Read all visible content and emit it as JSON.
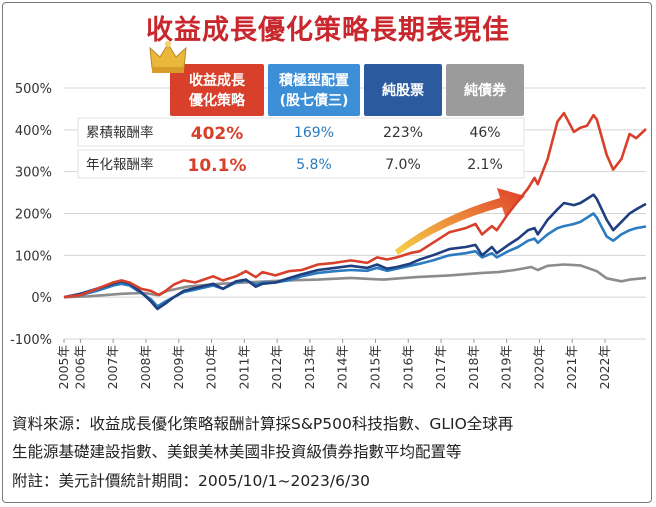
{
  "title": "收益成長優化策略長期表現佳",
  "chart_data": {
    "type": "line",
    "ylim": [
      -100,
      500
    ],
    "y_ticks": [
      -100,
      0,
      100,
      200,
      300,
      400,
      500
    ],
    "y_tick_labels": [
      "-100%",
      "0%",
      "100%",
      "200%",
      "300%",
      "400%",
      "500%"
    ],
    "x_ticks": [
      "2005年",
      "2006年",
      "2007年",
      "2008年",
      "2009年",
      "2010年",
      "2011年",
      "2012年",
      "2013年",
      "2014年",
      "2015年",
      "2016年",
      "2017年",
      "2018年",
      "2019年",
      "2020年",
      "2021年",
      "2022年"
    ],
    "xlim": [
      2005.75,
      2023.5
    ],
    "grid": true,
    "series": [
      {
        "name": "收益成長優化策略",
        "color": "#d8402b",
        "x": [
          2005.75,
          2006.25,
          2006.75,
          2007.25,
          2007.5,
          2007.75,
          2008.1,
          2008.4,
          2008.65,
          2008.85,
          2009.1,
          2009.4,
          2009.75,
          2010.3,
          2010.6,
          2011.0,
          2011.3,
          2011.6,
          2011.8,
          2012.2,
          2012.6,
          2013.0,
          2013.5,
          2014.0,
          2014.5,
          2015.0,
          2015.3,
          2015.6,
          2015.9,
          2016.3,
          2016.6,
          2017.0,
          2017.5,
          2018.0,
          2018.3,
          2018.5,
          2018.8,
          2018.95,
          2019.3,
          2019.6,
          2019.9,
          2020.1,
          2020.2,
          2020.5,
          2020.8,
          2021.0,
          2021.3,
          2021.5,
          2021.7,
          2021.9,
          2022.0,
          2022.3,
          2022.5,
          2022.75,
          2023.0,
          2023.2,
          2023.5
        ],
        "y": [
          0,
          5,
          20,
          35,
          40,
          35,
          20,
          15,
          5,
          15,
          30,
          40,
          35,
          50,
          40,
          50,
          62,
          48,
          60,
          52,
          62,
          65,
          78,
          82,
          88,
          82,
          95,
          90,
          95,
          105,
          110,
          130,
          155,
          165,
          175,
          150,
          170,
          160,
          200,
          230,
          260,
          285,
          270,
          330,
          420,
          440,
          395,
          405,
          410,
          435,
          425,
          340,
          305,
          330,
          390,
          380,
          402
        ]
      },
      {
        "name": "積極型配置(股七債三)",
        "color": "#2a7bbf",
        "x": [
          2005.75,
          2006.25,
          2006.75,
          2007.25,
          2007.5,
          2007.75,
          2008.1,
          2008.4,
          2008.6,
          2008.85,
          2009.1,
          2009.4,
          2009.75,
          2010.3,
          2010.6,
          2011.0,
          2011.3,
          2011.6,
          2011.8,
          2012.2,
          2012.6,
          2013.0,
          2013.5,
          2014.0,
          2014.5,
          2015.0,
          2015.3,
          2015.6,
          2015.9,
          2016.3,
          2016.6,
          2017.0,
          2017.5,
          2018.0,
          2018.3,
          2018.5,
          2018.8,
          2018.95,
          2019.3,
          2019.6,
          2019.9,
          2020.1,
          2020.2,
          2020.5,
          2020.8,
          2021.0,
          2021.3,
          2021.5,
          2021.7,
          2021.9,
          2022.0,
          2022.3,
          2022.5,
          2022.75,
          2023.0,
          2023.2,
          2023.5
        ],
        "y": [
          0,
          5,
          15,
          28,
          32,
          28,
          10,
          -5,
          -22,
          -10,
          0,
          12,
          18,
          28,
          20,
          35,
          40,
          30,
          35,
          35,
          40,
          50,
          58,
          62,
          65,
          63,
          70,
          63,
          68,
          75,
          80,
          88,
          100,
          105,
          110,
          95,
          105,
          95,
          110,
          120,
          135,
          140,
          130,
          150,
          165,
          170,
          175,
          180,
          190,
          200,
          190,
          145,
          135,
          150,
          160,
          165,
          169
        ]
      },
      {
        "name": "純股票",
        "color": "#1f3f80",
        "x": [
          2005.75,
          2006.25,
          2006.75,
          2007.25,
          2007.5,
          2007.75,
          2008.1,
          2008.4,
          2008.6,
          2008.85,
          2009.1,
          2009.4,
          2009.75,
          2010.3,
          2010.6,
          2011.0,
          2011.3,
          2011.6,
          2011.8,
          2012.2,
          2012.6,
          2013.0,
          2013.5,
          2014.0,
          2014.5,
          2015.0,
          2015.3,
          2015.6,
          2015.9,
          2016.3,
          2016.6,
          2017.0,
          2017.5,
          2018.0,
          2018.3,
          2018.5,
          2018.8,
          2018.95,
          2019.3,
          2019.6,
          2019.9,
          2020.1,
          2020.2,
          2020.5,
          2020.8,
          2021.0,
          2021.3,
          2021.5,
          2021.7,
          2021.9,
          2022.0,
          2022.3,
          2022.5,
          2022.75,
          2023.0,
          2023.2,
          2023.5
        ],
        "y": [
          0,
          8,
          20,
          32,
          38,
          32,
          12,
          -10,
          -28,
          -15,
          0,
          15,
          22,
          32,
          20,
          38,
          42,
          25,
          32,
          35,
          45,
          55,
          65,
          70,
          75,
          70,
          78,
          68,
          72,
          80,
          90,
          100,
          115,
          120,
          125,
          100,
          120,
          105,
          125,
          140,
          160,
          165,
          150,
          185,
          210,
          225,
          220,
          225,
          235,
          245,
          235,
          185,
          160,
          180,
          200,
          210,
          223
        ]
      },
      {
        "name": "純債券",
        "color": "#8c8c8c",
        "x": [
          2005.75,
          2006.5,
          2007.5,
          2008.2,
          2008.6,
          2008.9,
          2009.5,
          2010.5,
          2011.5,
          2012.5,
          2013.5,
          2014.5,
          2015.0,
          2015.5,
          2016.0,
          2016.5,
          2017.5,
          2018.5,
          2019.0,
          2019.5,
          2020.0,
          2020.2,
          2020.5,
          2021.0,
          2021.5,
          2022.0,
          2022.3,
          2022.75,
          2023.0,
          2023.5
        ],
        "y": [
          0,
          2,
          8,
          10,
          5,
          15,
          25,
          32,
          36,
          40,
          42,
          46,
          44,
          42,
          45,
          48,
          52,
          58,
          60,
          65,
          72,
          65,
          75,
          78,
          76,
          62,
          45,
          38,
          42,
          46
        ]
      }
    ],
    "table": {
      "columns": [
        {
          "label": "收益成長\n優化策略",
          "bg": "#d8402b"
        },
        {
          "label": "積極型配置\n(股七債三)",
          "bg": "#3c8fd6"
        },
        {
          "label": "純股票",
          "bg": "#2b5a9f"
        },
        {
          "label": "純債券",
          "bg": "#9b9b9b"
        }
      ],
      "rows": [
        {
          "label": "累積報酬率",
          "values": [
            "402%",
            "169%",
            "223%",
            "46%"
          ]
        },
        {
          "label": "年化報酬率",
          "values": [
            "10.1%",
            "5.8%",
            "7.0%",
            "2.1%"
          ]
        }
      ],
      "value_colors": [
        "#d8402b",
        "#2a7bbf",
        "#333333",
        "#333333"
      ]
    }
  },
  "notes": {
    "line1": "資料來源：收益成長優化策略報酬計算採S&P500科技指數、GLIO全球再",
    "line2": "生能源基礎建設指數、美銀美林美國非投資級債券指數平均配置等",
    "line3": "附註：美元計價統計期間：2005/10/1~2023/6/30"
  }
}
